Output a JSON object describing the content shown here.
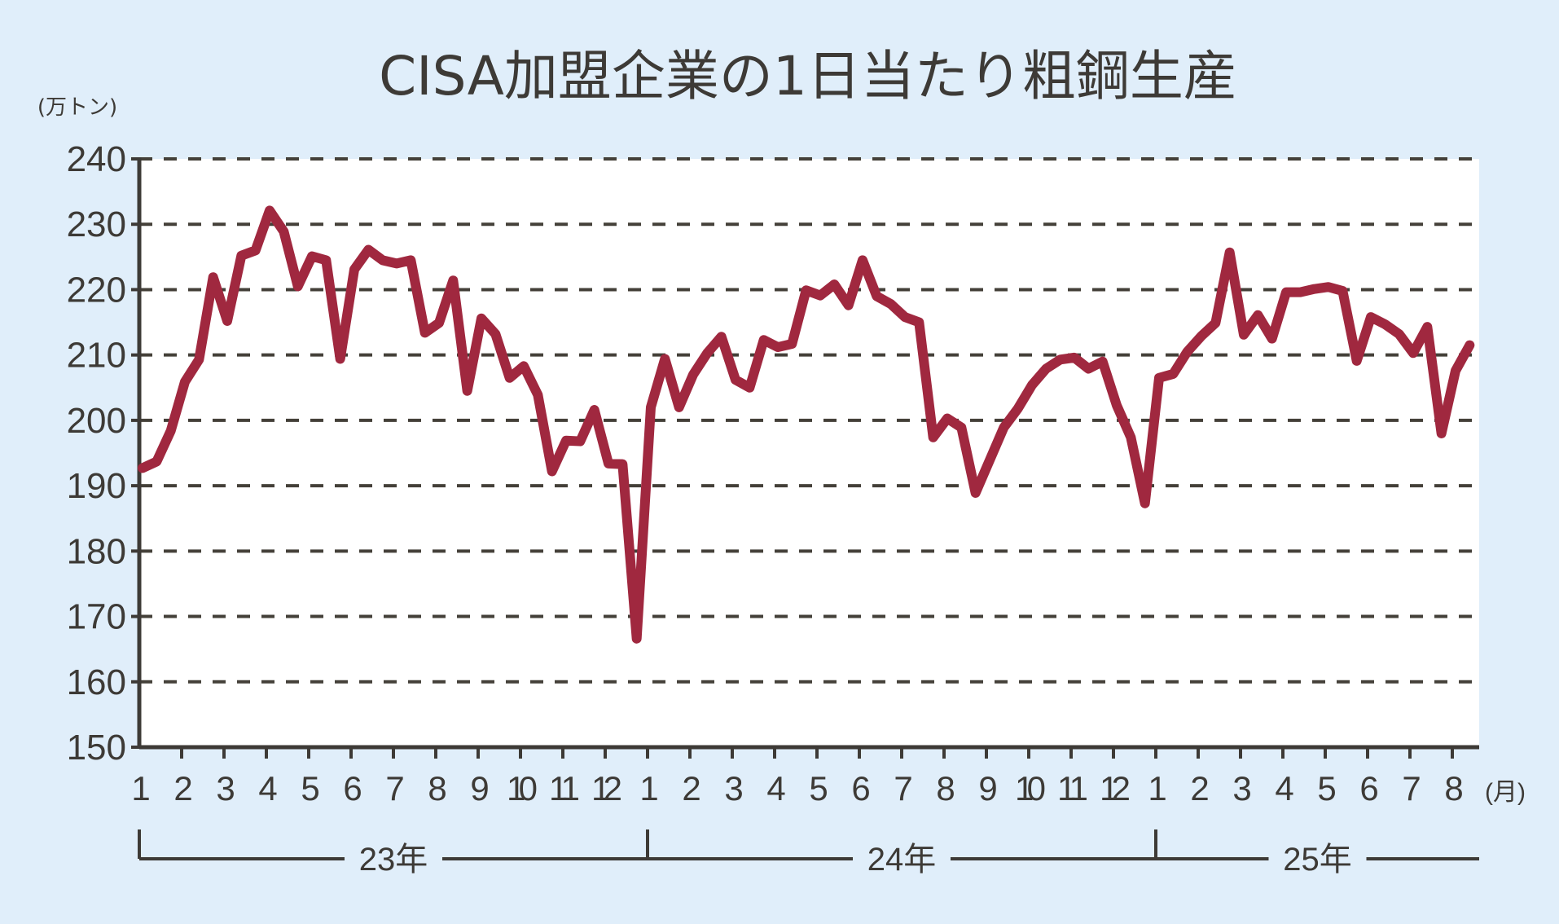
{
  "chart_data": {
    "type": "line",
    "title": "CISA加盟企業の1日当たり粗鋼生産",
    "ylabel": "(万トン)",
    "xlabel_unit": "(月)",
    "ylim": [
      150,
      240
    ],
    "yticks": [
      150,
      160,
      170,
      180,
      190,
      200,
      210,
      220,
      230,
      240
    ],
    "grid": true,
    "grid_style": "dashed horizontal",
    "line_color": "#a0283f",
    "background_color": "#e0eefa",
    "month_labels": [
      "1",
      "2",
      "3",
      "4",
      "5",
      "6",
      "7",
      "8",
      "9",
      "10",
      "11",
      "12",
      "1",
      "2",
      "3",
      "4",
      "5",
      "6",
      "7",
      "8",
      "9",
      "10",
      "11",
      "12",
      "1",
      "2",
      "3",
      "4",
      "5",
      "6",
      "7",
      "8"
    ],
    "years": [
      "23年",
      "24年",
      "25年"
    ],
    "sampling": "3 points per month (旬)",
    "series": [
      {
        "values": [
          192.7,
          193.7,
          198.4,
          205.9,
          209.3,
          221.9,
          215.2,
          225.2,
          226.0,
          232.1,
          228.9,
          220.5,
          225.1,
          224.5,
          209.4,
          223.1,
          226.1,
          224.5,
          224.0,
          224.5,
          213.4,
          214.9,
          221.4,
          204.5,
          215.6,
          213.2,
          206.5,
          208.3,
          203.9,
          192.2,
          196.9,
          196.8,
          201.6,
          193.4,
          193.3,
          166.6,
          202.0,
          209.4,
          202.0,
          207.0,
          210.3,
          212.8,
          206.2,
          205.0,
          212.3,
          211.2,
          211.7,
          219.9,
          219.1,
          220.8,
          217.6,
          224.5,
          219.0,
          217.8,
          215.8,
          215.0,
          197.4,
          200.3,
          198.9,
          188.9,
          193.9,
          198.9,
          201.8,
          205.4,
          207.9,
          209.3,
          209.6,
          207.9,
          209.0,
          202.3,
          197.4,
          187.3,
          206.5,
          207.1,
          210.5,
          212.9,
          214.9,
          225.7,
          213.1,
          216.1,
          212.5,
          219.6,
          219.6,
          220.1,
          220.4,
          219.8,
          209.1,
          215.8,
          214.7,
          213.2,
          210.3,
          214.3,
          198.0,
          207.6,
          211.5
        ]
      }
    ]
  }
}
